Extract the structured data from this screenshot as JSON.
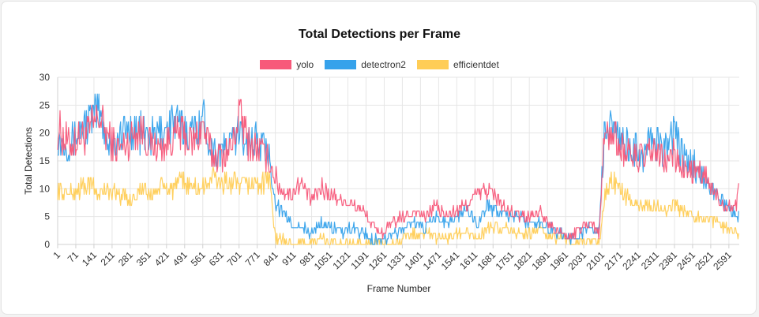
{
  "chart_data": {
    "type": "line",
    "title": "Total Detections per Frame",
    "xlabel": "Frame Number",
    "ylabel": "Total Detections",
    "ylim": [
      0,
      30
    ],
    "y_ticks": [
      0,
      5,
      10,
      15,
      20,
      25,
      30
    ],
    "x_range": [
      1,
      2631
    ],
    "x_tick_labels": [
      "1",
      "71",
      "141",
      "211",
      "281",
      "351",
      "421",
      "491",
      "561",
      "631",
      "701",
      "771",
      "841",
      "911",
      "981",
      "1051",
      "1121",
      "1191",
      "1261",
      "1331",
      "1401",
      "1471",
      "1541",
      "1611",
      "1681",
      "1751",
      "1821",
      "1891",
      "1961",
      "2031",
      "2101",
      "2171",
      "2241",
      "2311",
      "2381",
      "2451",
      "2521",
      "2591"
    ],
    "grid": true,
    "legend_position": "top",
    "series": [
      {
        "name": "yolo",
        "color": "#f7597a",
        "x": [
          1,
          40,
          80,
          120,
          160,
          200,
          240,
          280,
          320,
          360,
          400,
          440,
          480,
          520,
          560,
          600,
          640,
          680,
          700,
          740,
          780,
          820,
          840,
          860,
          900,
          940,
          980,
          1020,
          1060,
          1100,
          1140,
          1180,
          1220,
          1260,
          1300,
          1340,
          1380,
          1420,
          1460,
          1500,
          1540,
          1580,
          1620,
          1660,
          1700,
          1740,
          1780,
          1820,
          1860,
          1900,
          1940,
          1980,
          2020,
          2060,
          2090,
          2110,
          2140,
          2180,
          2220,
          2260,
          2300,
          2340,
          2380,
          2420,
          2460,
          2500,
          2540,
          2580,
          2620,
          2631
        ],
        "values": [
          21,
          18,
          19,
          20,
          23,
          19,
          17,
          19,
          21,
          18,
          17,
          19,
          20,
          18,
          21,
          16,
          16,
          18,
          24,
          18,
          17,
          15,
          12,
          10,
          9,
          11,
          8,
          10,
          9,
          8,
          7,
          6,
          3,
          2,
          4,
          5,
          6,
          5,
          7,
          5,
          6,
          7,
          9,
          10,
          8,
          6,
          5,
          5,
          6,
          4,
          2,
          1,
          3,
          4,
          2,
          19,
          20,
          17,
          16,
          15,
          17,
          15,
          16,
          13,
          13,
          12,
          9,
          7,
          7,
          13
        ]
      },
      {
        "name": "detectron2",
        "color": "#36a2eb",
        "x": [
          1,
          40,
          80,
          120,
          160,
          200,
          240,
          280,
          320,
          360,
          400,
          440,
          480,
          520,
          560,
          600,
          640,
          680,
          700,
          740,
          780,
          820,
          840,
          860,
          900,
          940,
          980,
          1020,
          1060,
          1100,
          1140,
          1180,
          1220,
          1260,
          1300,
          1340,
          1380,
          1420,
          1460,
          1500,
          1540,
          1580,
          1620,
          1660,
          1700,
          1740,
          1780,
          1820,
          1860,
          1900,
          1940,
          1980,
          2020,
          2060,
          2090,
          2110,
          2140,
          2180,
          2220,
          2260,
          2300,
          2340,
          2380,
          2420,
          2460,
          2500,
          2540,
          2580,
          2620,
          2631
        ],
        "values": [
          19,
          18,
          20,
          22,
          24,
          18,
          19,
          21,
          20,
          19,
          20,
          22,
          21,
          20,
          23,
          17,
          17,
          19,
          20,
          19,
          18,
          16,
          8,
          6,
          4,
          3,
          2,
          4,
          3,
          2,
          3,
          2,
          1,
          1,
          2,
          3,
          4,
          3,
          5,
          4,
          5,
          6,
          4,
          7,
          6,
          5,
          5,
          4,
          4,
          3,
          2,
          1,
          2,
          3,
          2,
          20,
          21,
          18,
          17,
          16,
          19,
          17,
          20,
          15,
          14,
          12,
          9,
          7,
          5,
          5
        ]
      },
      {
        "name": "efficientdet",
        "color": "#ffcd56",
        "x": [
          1,
          40,
          80,
          120,
          160,
          200,
          240,
          280,
          320,
          360,
          400,
          440,
          480,
          520,
          560,
          600,
          640,
          680,
          700,
          740,
          780,
          820,
          840,
          860,
          900,
          940,
          980,
          1020,
          1060,
          1100,
          1140,
          1180,
          1220,
          1260,
          1300,
          1340,
          1380,
          1420,
          1460,
          1500,
          1540,
          1580,
          1620,
          1660,
          1700,
          1740,
          1780,
          1820,
          1860,
          1900,
          1940,
          1980,
          2020,
          2060,
          2090,
          2110,
          2140,
          2180,
          2220,
          2260,
          2300,
          2340,
          2380,
          2420,
          2460,
          2500,
          2540,
          2580,
          2620,
          2631
        ],
        "values": [
          10,
          9,
          10,
          11,
          9,
          10,
          9,
          8,
          10,
          9,
          10,
          10,
          11,
          10,
          10,
          12,
          11,
          11,
          10,
          11,
          11,
          12,
          1,
          1,
          0,
          0,
          0,
          1,
          0,
          0,
          0,
          0,
          0,
          0,
          0,
          1,
          2,
          2,
          1,
          1,
          2,
          2,
          1,
          3,
          3,
          3,
          2,
          2,
          3,
          1,
          1,
          0,
          0,
          1,
          0,
          8,
          12,
          9,
          8,
          7,
          7,
          6,
          7,
          6,
          5,
          5,
          4,
          3,
          2,
          2
        ]
      }
    ]
  }
}
